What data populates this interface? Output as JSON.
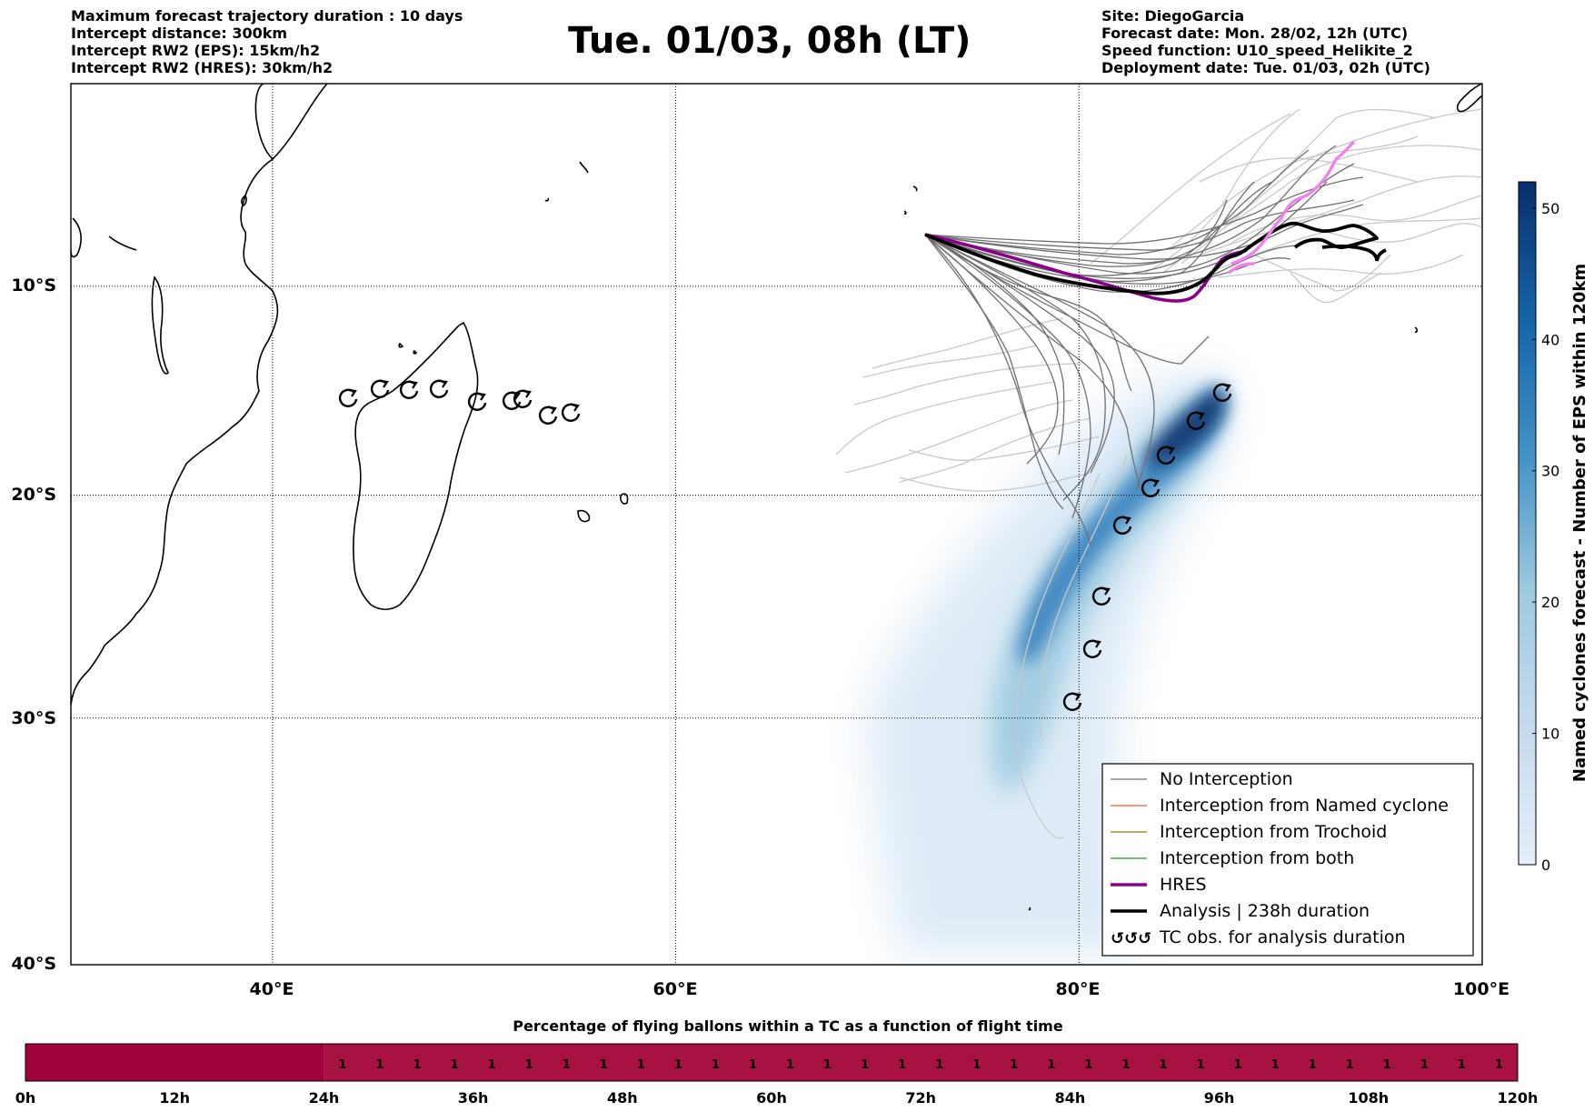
{
  "header_left": [
    "Maximum forecast trajectory duration : 10 days",
    "Intercept distance: 300km",
    "Intercept RW2 (EPS):  15km/h2",
    "Intercept RW2 (HRES): 30km/h2"
  ],
  "header_right": [
    "Site: DiegoGarcia",
    "Forecast date: Mon. 28/02, 12h (UTC)",
    "Speed function: U10_speed_Helikite_2",
    "Deployment date: Tue. 01/03, 02h (UTC)"
  ],
  "title": "Tue. 01/03, 08h (LT)",
  "map": {
    "lon_range": [
      30,
      100
    ],
    "lat_range": [
      -40,
      0
    ],
    "lat_labels": [
      "10°S",
      "20°S",
      "30°S",
      "40°S"
    ],
    "lon_labels": [
      "40°E",
      "60°E",
      "80°E",
      "100°E"
    ],
    "grid": "dotted",
    "colors": {
      "no_interception": "#707070",
      "named_cyclone": "#ff5a1e",
      "trochoid": "#808000",
      "both": "#1a9a1a",
      "hres": "#8b008b",
      "analysis": "#000000",
      "analysis_tail": "#ee82ee"
    }
  },
  "colorbar": {
    "label": "Named cyclones forecast - Number of EPS within 120km",
    "ticks": [
      "0",
      "10",
      "20",
      "30",
      "40",
      "50"
    ],
    "range": [
      0,
      52
    ],
    "color_low": "#e3eef9",
    "color_high": "#08306b"
  },
  "legend": {
    "items": [
      {
        "label": "No Interception",
        "color": "#707070",
        "style": "thin"
      },
      {
        "label": "Interception from Named cyclone",
        "color": "#ff5a1e",
        "style": "thin"
      },
      {
        "label": "Interception from Trochoid",
        "color": "#808000",
        "style": "thin"
      },
      {
        "label": "Interception from both",
        "color": "#1a9a1a",
        "style": "thin"
      },
      {
        "label": "HRES",
        "color": "#8b008b",
        "style": "thick"
      },
      {
        "label": "Analysis | 238h duration",
        "color": "#000000",
        "style": "thick"
      },
      {
        "label": "TC obs. for analysis duration",
        "color": "#000000",
        "style": "tc"
      }
    ]
  },
  "tc_symbol": "↺",
  "bottom_bar": {
    "title": "Percentage of flying ballons within a TC as a function of flight time",
    "tick_labels": [
      "0h",
      "12h",
      "24h",
      "36h",
      "48h",
      "60h",
      "72h",
      "84h",
      "96h",
      "108h",
      "120h"
    ],
    "cell_value": "1",
    "cells_empty_until_hour": 24,
    "color_zero": "#a0003c",
    "color_one": "#a81242"
  }
}
